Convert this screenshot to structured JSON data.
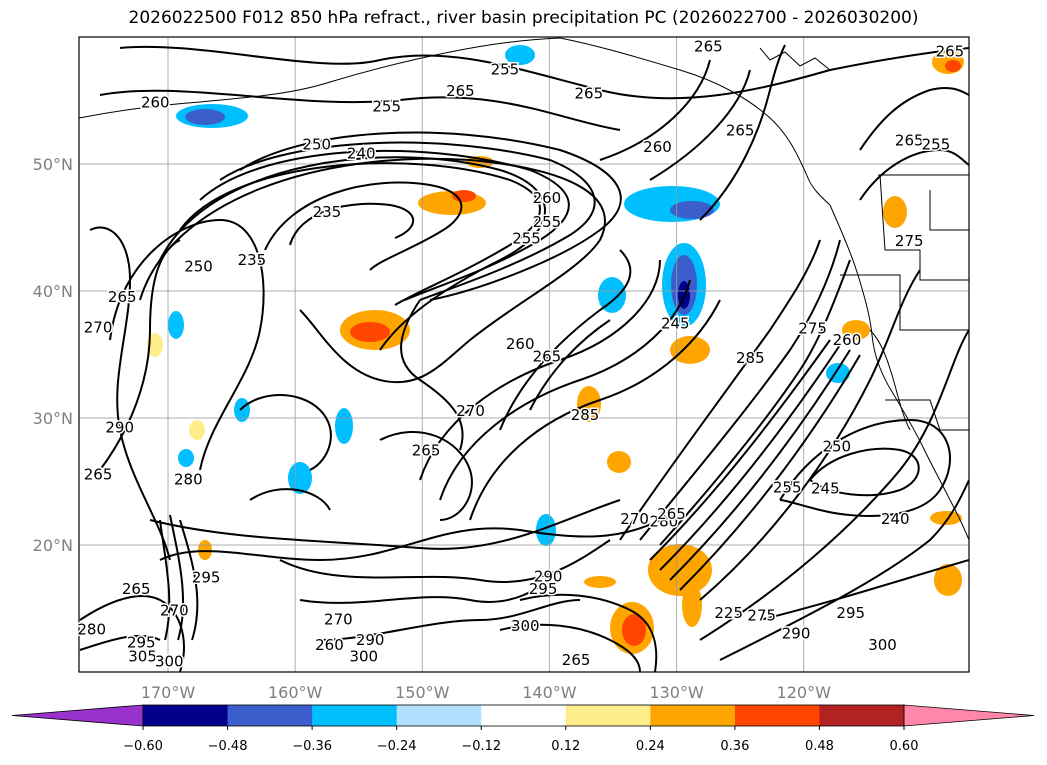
{
  "title": "2026022500 F012 850 hPa refract., river basin precipitation PC (2026022700 - 2026030200)",
  "map": {
    "projection": "lat-lon",
    "lon_range": [
      -177,
      -107
    ],
    "lat_range": [
      10,
      60
    ],
    "gridlines": true,
    "lat_ticks": [
      "20°N",
      "30°N",
      "40°N",
      "50°N"
    ],
    "lat_tick_values": [
      20,
      30,
      40,
      50
    ],
    "lon_ticks": [
      "170°W",
      "160°W",
      "150°W",
      "140°W",
      "130°W",
      "120°W"
    ],
    "lon_tick_values": [
      -170,
      -160,
      -150,
      -140,
      -130,
      -120
    ],
    "coastlines": true,
    "borders": true
  },
  "contour_labels": [
    {
      "text": "260",
      "lon": -171,
      "lat": 54.8
    },
    {
      "text": "255",
      "lon": -152.8,
      "lat": 54.5
    },
    {
      "text": "255",
      "lon": -143.5,
      "lat": 57.4
    },
    {
      "text": "265",
      "lon": -147,
      "lat": 55.7
    },
    {
      "text": "265",
      "lon": -136.9,
      "lat": 55.5
    },
    {
      "text": "265",
      "lon": -127.5,
      "lat": 59.2
    },
    {
      "text": "265",
      "lon": -125,
      "lat": 52.6
    },
    {
      "text": "250",
      "lon": -158.3,
      "lat": 51.5
    },
    {
      "text": "240",
      "lon": -154.8,
      "lat": 50.8
    },
    {
      "text": "260",
      "lon": -131.5,
      "lat": 51.3
    },
    {
      "text": "260",
      "lon": -140.2,
      "lat": 47.3
    },
    {
      "text": "255",
      "lon": -141.8,
      "lat": 44.1
    },
    {
      "text": "255",
      "lon": -140.2,
      "lat": 45.4
    },
    {
      "text": "235",
      "lon": -157.5,
      "lat": 46.2
    },
    {
      "text": "235",
      "lon": -163.4,
      "lat": 42.4
    },
    {
      "text": "250",
      "lon": -167.6,
      "lat": 41.9
    },
    {
      "text": "245",
      "lon": -130.1,
      "lat": 37.4
    },
    {
      "text": "260",
      "lon": -142.3,
      "lat": 35.8
    },
    {
      "text": "265",
      "lon": -140.2,
      "lat": 34.8
    },
    {
      "text": "270",
      "lon": -146.2,
      "lat": 30.5
    },
    {
      "text": "285",
      "lon": -137.2,
      "lat": 30.2
    },
    {
      "text": "265",
      "lon": -149.7,
      "lat": 27.4
    },
    {
      "text": "270",
      "lon": -175.5,
      "lat": 37.1
    },
    {
      "text": "265",
      "lon": -173.6,
      "lat": 39.5
    },
    {
      "text": "290",
      "lon": -173.8,
      "lat": 29.2
    },
    {
      "text": "280",
      "lon": -168.4,
      "lat": 25.1
    },
    {
      "text": "265",
      "lon": -175.5,
      "lat": 25.5
    },
    {
      "text": "295",
      "lon": -167,
      "lat": 17.4
    },
    {
      "text": "270",
      "lon": -169.5,
      "lat": 14.8
    },
    {
      "text": "265",
      "lon": -172.5,
      "lat": 16.5
    },
    {
      "text": "270",
      "lon": -156.6,
      "lat": 14.1
    },
    {
      "text": "260",
      "lon": -157.3,
      "lat": 12.1
    },
    {
      "text": "290",
      "lon": -154.1,
      "lat": 12.5
    },
    {
      "text": "300",
      "lon": -154.6,
      "lat": 11.2
    },
    {
      "text": "295",
      "lon": -172.1,
      "lat": 12.3
    },
    {
      "text": "305",
      "lon": -172,
      "lat": 11.2
    },
    {
      "text": "300",
      "lon": -169.9,
      "lat": 10.8
    },
    {
      "text": "290",
      "lon": -140.1,
      "lat": 17.5
    },
    {
      "text": "295",
      "lon": -140.5,
      "lat": 16.5
    },
    {
      "text": "300",
      "lon": -141.9,
      "lat": 13.6
    },
    {
      "text": "265",
      "lon": -137.9,
      "lat": 10.9
    },
    {
      "text": "270",
      "lon": -133.3,
      "lat": 22
    },
    {
      "text": "280",
      "lon": -131,
      "lat": 21.8
    },
    {
      "text": "285",
      "lon": -124.2,
      "lat": 34.7
    },
    {
      "text": "275",
      "lon": -119.3,
      "lat": 37
    },
    {
      "text": "260",
      "lon": -116.6,
      "lat": 36.1
    },
    {
      "text": "250",
      "lon": -117.4,
      "lat": 27.7
    },
    {
      "text": "255",
      "lon": -121.3,
      "lat": 24.5
    },
    {
      "text": "245",
      "lon": -118.3,
      "lat": 24.4
    },
    {
      "text": "240",
      "lon": -112.8,
      "lat": 22
    },
    {
      "text": "275",
      "lon": -111.7,
      "lat": 43.9
    },
    {
      "text": "265",
      "lon": -108.5,
      "lat": 58.8
    },
    {
      "text": "265",
      "lon": -111.7,
      "lat": 51.8
    },
    {
      "text": "255",
      "lon": -109.6,
      "lat": 51.5
    },
    {
      "text": "280",
      "lon": -176,
      "lat": 13.3
    },
    {
      "text": "275",
      "lon": -123.3,
      "lat": 14.4
    },
    {
      "text": "290",
      "lon": -120.6,
      "lat": 13
    },
    {
      "text": "295",
      "lon": -116.3,
      "lat": 14.6
    },
    {
      "text": "300",
      "lon": -113.8,
      "lat": 12.1
    },
    {
      "text": "225",
      "lon": -125.9,
      "lat": 14.6
    },
    {
      "text": "265",
      "lon": -130.4,
      "lat": 22.4
    }
  ],
  "colorbar": {
    "tick_labels": [
      "−0.60",
      "−0.48",
      "−0.36",
      "−0.24",
      "−0.12",
      "0.12",
      "0.24",
      "0.36",
      "0.48",
      "0.60"
    ],
    "tick_values": [
      -0.6,
      -0.48,
      -0.36,
      -0.24,
      -0.12,
      0.12,
      0.24,
      0.36,
      0.48,
      0.6
    ],
    "colors": [
      "#9932cc",
      "#00008b",
      "#3a5fcd",
      "#00bfff",
      "#b0e2ff",
      "#ffffff",
      "#ffec8b",
      "#ffa500",
      "#ff4500",
      "#b22222",
      "#ff88aa"
    ],
    "extend": "both"
  }
}
